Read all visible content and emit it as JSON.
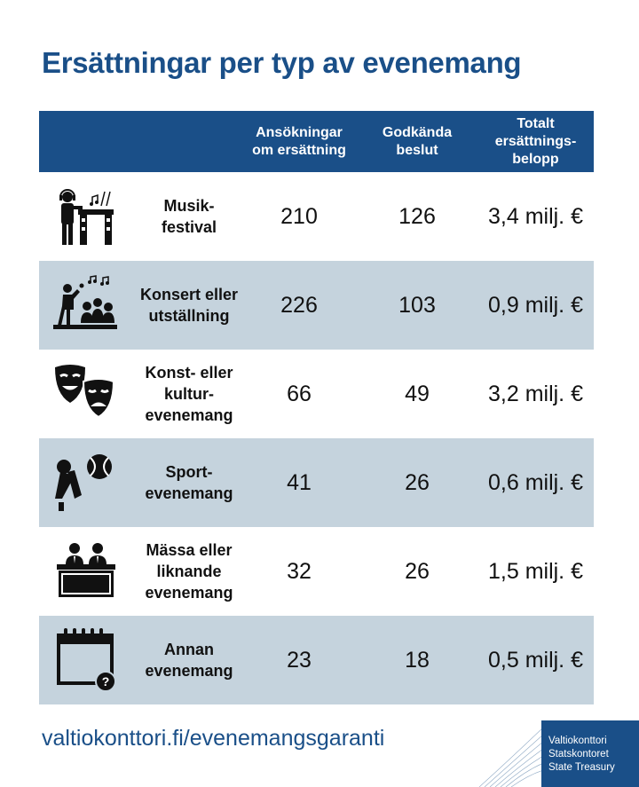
{
  "title": "Ersättningar per typ av evenemang",
  "chart_data": {
    "type": "table",
    "headers": {
      "applications": [
        "Ansökningar",
        "om ersättning"
      ],
      "approved": [
        "Godkända",
        "beslut"
      ],
      "total": [
        "Totalt",
        "ersättnings-",
        "belopp"
      ]
    },
    "rows": [
      {
        "icon": "dj-music-festival-icon",
        "category": [
          "Musik-",
          "festival"
        ],
        "applications": "210",
        "approved": "126",
        "total": "3,4 milj. €"
      },
      {
        "icon": "concert-singer-audience-icon",
        "category": [
          "Konsert eller",
          "utställning"
        ],
        "applications": "226",
        "approved": "103",
        "total": "0,9 milj. €"
      },
      {
        "icon": "theatre-masks-icon",
        "category": [
          "Konst- eller",
          "kultur-",
          "evenemang"
        ],
        "applications": "66",
        "approved": "49",
        "total": "3,2 milj. €"
      },
      {
        "icon": "sport-shuttlecock-ball-icon",
        "category": [
          "Sport-",
          "evenemang"
        ],
        "applications": "41",
        "approved": "26",
        "total": "0,6 milj. €"
      },
      {
        "icon": "fair-booth-icon",
        "category": [
          "Mässa eller",
          "liknande",
          "evenemang"
        ],
        "applications": "32",
        "approved": "26",
        "total": "1,5 milj. €"
      },
      {
        "icon": "calendar-question-icon",
        "category": [
          "Annan",
          "evenemang"
        ],
        "applications": "23",
        "approved": "18",
        "total": "0,5 milj. €"
      }
    ]
  },
  "footer": {
    "url": "valtiokonttori.fi/evenemangsgaranti",
    "brand": [
      "Valtiokonttori",
      "Statskontoret",
      "State Treasury"
    ]
  },
  "colors": {
    "primary": "#1a4f88",
    "row_alt": "#c5d3dd"
  }
}
